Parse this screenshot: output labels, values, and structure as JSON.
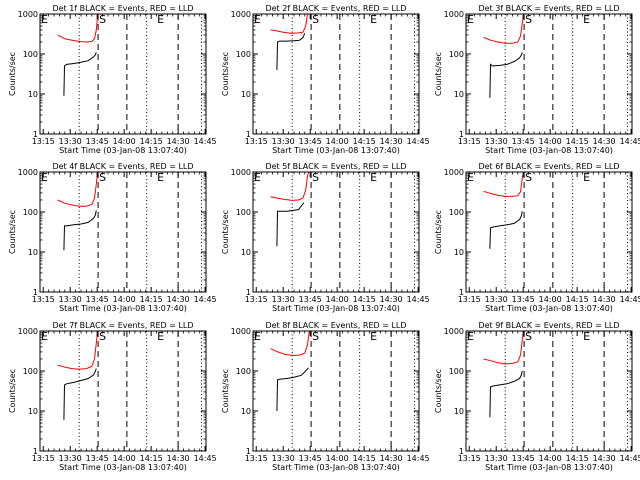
{
  "chart_data": {
    "type": "line",
    "x_ticks": [
      "13:15",
      "13:30",
      "13:45",
      "14:00",
      "14:15",
      "14:30",
      "14:45"
    ],
    "x_domain_minutes": [
      13.2,
      105.5
    ],
    "xlabel": "Start Time (03-Jan-08 13:07:40)",
    "ylabel": "Counts/sec",
    "ylim": [
      1,
      1000
    ],
    "ytick_values": [
      1,
      10,
      100,
      1000
    ],
    "ytick_labels": [
      "1",
      "10",
      "100",
      "1000"
    ],
    "yscale": "log",
    "vlines": [
      {
        "t": 35.0,
        "style": "dotted"
      },
      {
        "t": 45.5,
        "style": "dashed"
      },
      {
        "t": 61.5,
        "style": "dashed"
      },
      {
        "t": 72.5,
        "style": "dotted"
      },
      {
        "t": 90.0,
        "style": "dashed"
      },
      {
        "t": 103.0,
        "style": "dotted"
      }
    ],
    "markers": [
      {
        "label": "E",
        "t": 13.2
      },
      {
        "label": "S",
        "t": 45.5
      },
      {
        "label": "E",
        "t": 77.8
      }
    ],
    "colors": {
      "events": "#000000",
      "lld": "#ff0000"
    },
    "panels": [
      {
        "title": "Det 1f BLACK = Events, RED = LLD",
        "series": [
          {
            "color": "red",
            "points": [
              [
                23.0,
                300
              ],
              [
                27,
                240
              ],
              [
                31,
                220
              ],
              [
                35,
                205
              ],
              [
                39,
                200
              ],
              [
                42,
                205
              ],
              [
                43.5,
                240
              ],
              [
                44.5,
                400
              ],
              [
                45.2,
                900
              ],
              [
                45.5,
                1000
              ]
            ]
          },
          {
            "color": "black",
            "points": [
              [
                26.5,
                9
              ],
              [
                26.8,
                50
              ],
              [
                28,
                55
              ],
              [
                32,
                58
              ],
              [
                36,
                62
              ],
              [
                40,
                68
              ],
              [
                43,
                85
              ],
              [
                44,
                95
              ],
              [
                44.5,
                110
              ]
            ]
          }
        ]
      },
      {
        "title": "Det 2f BLACK = Events, RED = LLD",
        "series": [
          {
            "color": "red",
            "points": [
              [
                23.0,
                400
              ],
              [
                26,
                380
              ],
              [
                30,
                350
              ],
              [
                34,
                330
              ],
              [
                38,
                335
              ],
              [
                41,
                350
              ],
              [
                42.5,
                500
              ],
              [
                43.5,
                1000
              ]
            ]
          },
          {
            "color": "black",
            "points": [
              [
                26.5,
                40
              ],
              [
                26.8,
                200
              ],
              [
                28,
                210
              ],
              [
                32,
                210
              ],
              [
                36,
                215
              ],
              [
                39,
                220
              ],
              [
                41,
                260
              ],
              [
                42,
                330
              ]
            ]
          }
        ]
      },
      {
        "title": "Det 3f BLACK = Events, RED = LLD",
        "series": [
          {
            "color": "red",
            "points": [
              [
                23.0,
                260
              ],
              [
                27,
                220
              ],
              [
                31,
                200
              ],
              [
                35,
                185
              ],
              [
                39,
                185
              ],
              [
                42,
                200
              ],
              [
                43.5,
                280
              ],
              [
                44.5,
                600
              ],
              [
                45.2,
                1000
              ]
            ]
          },
          {
            "color": "black",
            "points": [
              [
                26.5,
                8
              ],
              [
                26.8,
                55
              ],
              [
                28,
                50
              ],
              [
                32,
                52
              ],
              [
                36,
                55
              ],
              [
                40,
                65
              ],
              [
                43,
                80
              ],
              [
                44,
                95
              ],
              [
                44.5,
                110
              ]
            ]
          }
        ]
      },
      {
        "title": "Det 4f BLACK = Events, RED = LLD",
        "series": [
          {
            "color": "red",
            "points": [
              [
                23.0,
                200
              ],
              [
                27,
                165
              ],
              [
                31,
                150
              ],
              [
                35,
                140
              ],
              [
                39,
                140
              ],
              [
                42,
                155
              ],
              [
                43.5,
                220
              ],
              [
                44.5,
                500
              ],
              [
                45.2,
                1000
              ]
            ]
          },
          {
            "color": "black",
            "points": [
              [
                26.5,
                11
              ],
              [
                26.8,
                45
              ],
              [
                28,
                45
              ],
              [
                32,
                48
              ],
              [
                36,
                50
              ],
              [
                40,
                55
              ],
              [
                43,
                70
              ],
              [
                44,
                85
              ],
              [
                44.5,
                110
              ]
            ]
          }
        ]
      },
      {
        "title": "Det 5f BLACK = Events, RED = LLD",
        "series": [
          {
            "color": "red",
            "points": [
              [
                23.0,
                240
              ],
              [
                27,
                220
              ],
              [
                31,
                205
              ],
              [
                35,
                195
              ],
              [
                38.5,
                200
              ],
              [
                41,
                225
              ],
              [
                42.5,
                350
              ],
              [
                43.5,
                800
              ],
              [
                44.2,
                1000
              ]
            ]
          },
          {
            "color": "black",
            "points": [
              [
                26.5,
                14
              ],
              [
                26.8,
                105
              ],
              [
                28,
                105
              ],
              [
                32,
                105
              ],
              [
                36,
                110
              ],
              [
                38.5,
                115
              ],
              [
                40.5,
                150
              ],
              [
                41.5,
                170
              ]
            ]
          }
        ]
      },
      {
        "title": "Det 6f BLACK = Events, RED = LLD",
        "series": [
          {
            "color": "red",
            "points": [
              [
                23.0,
                330
              ],
              [
                27,
                290
              ],
              [
                31,
                260
              ],
              [
                35,
                245
              ],
              [
                39,
                245
              ],
              [
                42,
                255
              ],
              [
                43.5,
                320
              ],
              [
                44.5,
                700
              ],
              [
                45.2,
                1000
              ]
            ]
          },
          {
            "color": "black",
            "points": [
              [
                26.5,
                12
              ],
              [
                26.8,
                40
              ],
              [
                28,
                42
              ],
              [
                32,
                45
              ],
              [
                36,
                48
              ],
              [
                40,
                52
              ],
              [
                43,
                65
              ],
              [
                44,
                80
              ],
              [
                44.5,
                105
              ]
            ]
          }
        ]
      },
      {
        "title": "Det 7f BLACK = Events, RED = LLD",
        "series": [
          {
            "color": "red",
            "points": [
              [
                23.0,
                140
              ],
              [
                27,
                125
              ],
              [
                31,
                115
              ],
              [
                35,
                110
              ],
              [
                39,
                115
              ],
              [
                42,
                130
              ],
              [
                43.5,
                200
              ],
              [
                44.5,
                500
              ],
              [
                45.2,
                1000
              ]
            ]
          },
          {
            "color": "black",
            "points": [
              [
                26.5,
                6
              ],
              [
                26.8,
                45
              ],
              [
                28,
                48
              ],
              [
                32,
                52
              ],
              [
                36,
                58
              ],
              [
                40,
                65
              ],
              [
                43,
                80
              ],
              [
                44,
                100
              ],
              [
                44.5,
                115
              ]
            ]
          }
        ]
      },
      {
        "title": "Det 8f BLACK = Events, RED = LLD",
        "series": [
          {
            "color": "red",
            "points": [
              [
                23.0,
                360
              ],
              [
                27,
                300
              ],
              [
                31,
                260
              ],
              [
                35,
                245
              ],
              [
                39,
                250
              ],
              [
                42,
                280
              ],
              [
                43.5,
                450
              ],
              [
                44.5,
                1000
              ]
            ]
          },
          {
            "color": "black",
            "points": [
              [
                26.5,
                10
              ],
              [
                26.8,
                60
              ],
              [
                28,
                62
              ],
              [
                32,
                65
              ],
              [
                36,
                70
              ],
              [
                40,
                78
              ],
              [
                42.5,
                100
              ],
              [
                44,
                120
              ]
            ]
          }
        ]
      },
      {
        "title": "Det 9f BLACK = Events, RED = LLD",
        "series": [
          {
            "color": "red",
            "points": [
              [
                23.0,
                200
              ],
              [
                27,
                180
              ],
              [
                31,
                160
              ],
              [
                35,
                150
              ],
              [
                39,
                155
              ],
              [
                42,
                170
              ],
              [
                43.5,
                250
              ],
              [
                44.5,
                600
              ],
              [
                45.2,
                1000
              ]
            ]
          },
          {
            "color": "black",
            "points": [
              [
                26.5,
                7
              ],
              [
                26.8,
                40
              ],
              [
                28,
                42
              ],
              [
                32,
                45
              ],
              [
                36,
                48
              ],
              [
                40,
                55
              ],
              [
                43,
                65
              ],
              [
                44,
                80
              ],
              [
                44.5,
                100
              ]
            ]
          }
        ]
      }
    ]
  }
}
